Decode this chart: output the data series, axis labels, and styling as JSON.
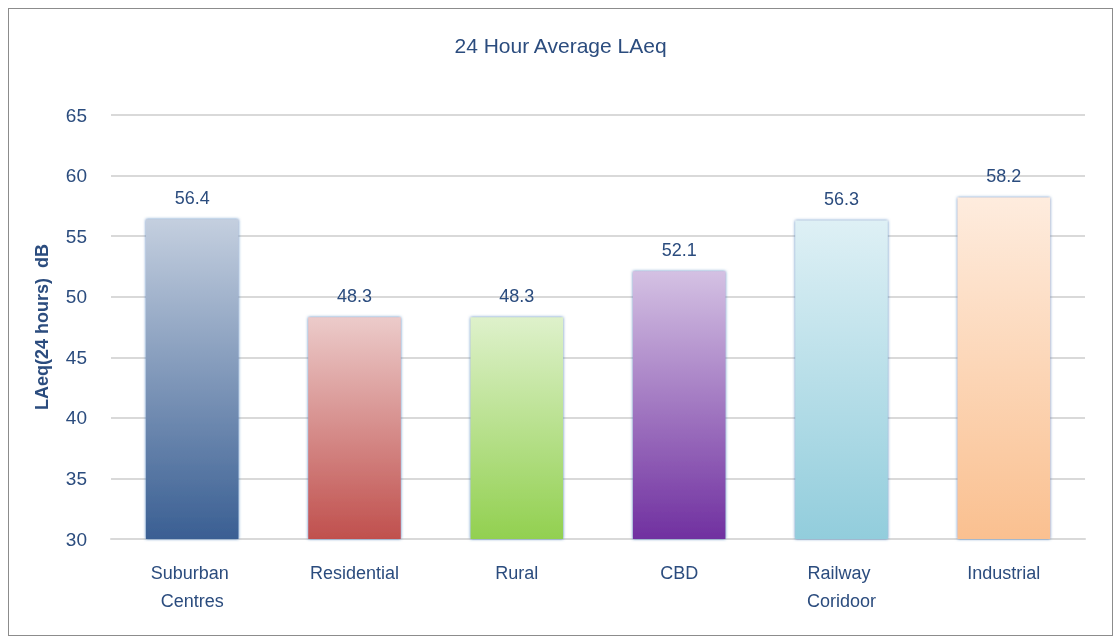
{
  "chart_data": {
    "type": "bar",
    "title": "24 Hour Average LAeq",
    "ylabel": "LAeq(24 hours)  dB",
    "categories": [
      "Suburban Centres",
      "Residential",
      "Rural",
      "CBD",
      "Railway Coridoor",
      "Industrial"
    ],
    "values": [
      56.4,
      48.3,
      48.3,
      52.1,
      56.3,
      58.2
    ],
    "colors": [
      "#3a5f93",
      "#c0504d",
      "#92d050",
      "#7030a0",
      "#92cddc",
      "#fac090"
    ],
    "ylim": [
      30,
      65
    ],
    "yticks": [
      30,
      35,
      40,
      45,
      50,
      55,
      60,
      65
    ],
    "grid": "y",
    "data_labels": true
  }
}
